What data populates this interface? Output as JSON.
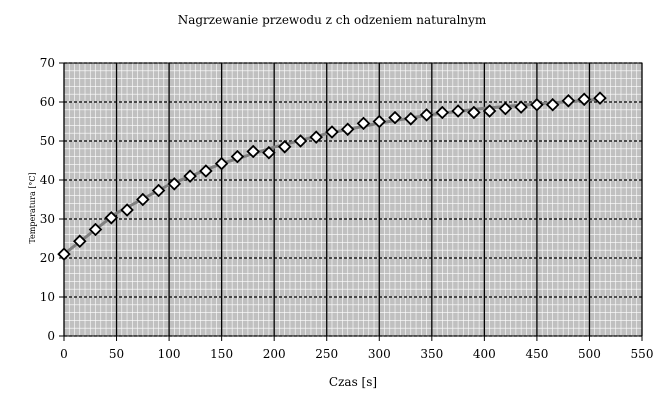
{
  "chart_data": {
    "type": "scatter",
    "title": "Nagrzewanie przewodu z ch odzeniem naturalnym",
    "xlabel": "Czas [s]",
    "ylabel": "Temperatura [°C]",
    "xlim": [
      0,
      550
    ],
    "ylim": [
      0,
      70
    ],
    "xticks": [
      0,
      50,
      100,
      150,
      200,
      250,
      300,
      350,
      400,
      450,
      500,
      550
    ],
    "yticks": [
      0,
      10,
      20,
      30,
      40,
      50,
      60,
      70
    ],
    "grid": "major and minor",
    "marker": "diamond",
    "colors": {
      "background": "#c0c0c0",
      "grid_major": "#000000",
      "grid_minor": "#ffffff",
      "trend": "#808080"
    },
    "series": [
      {
        "x": [
          0,
          15,
          30,
          45,
          60,
          75,
          90,
          105,
          120,
          135,
          150,
          165,
          180,
          195,
          210,
          225,
          240,
          255,
          270,
          285,
          300,
          315,
          330,
          345,
          360,
          375,
          390,
          405,
          420,
          435,
          450,
          465,
          480,
          495,
          510
        ],
        "values": [
          21,
          24.3,
          27.3,
          30.3,
          32.3,
          35.0,
          37.3,
          39.0,
          41.0,
          42.3,
          44.2,
          46.0,
          47.3,
          47.0,
          48.5,
          50.0,
          51.0,
          52.3,
          53.0,
          54.5,
          55.0,
          56.0,
          55.7,
          56.7,
          57.3,
          57.7,
          57.3,
          57.7,
          58.3,
          58.7,
          59.3,
          59.3,
          60.3,
          60.7,
          61.0
        ]
      }
    ],
    "trendline": {
      "x": [
        0,
        50,
        100,
        150,
        200,
        250,
        300,
        350,
        400,
        450,
        510
      ],
      "values": [
        21,
        31.5,
        38.8,
        44.2,
        48.4,
        51.9,
        54.6,
        56.8,
        58.4,
        59.5,
        60.7
      ]
    }
  }
}
